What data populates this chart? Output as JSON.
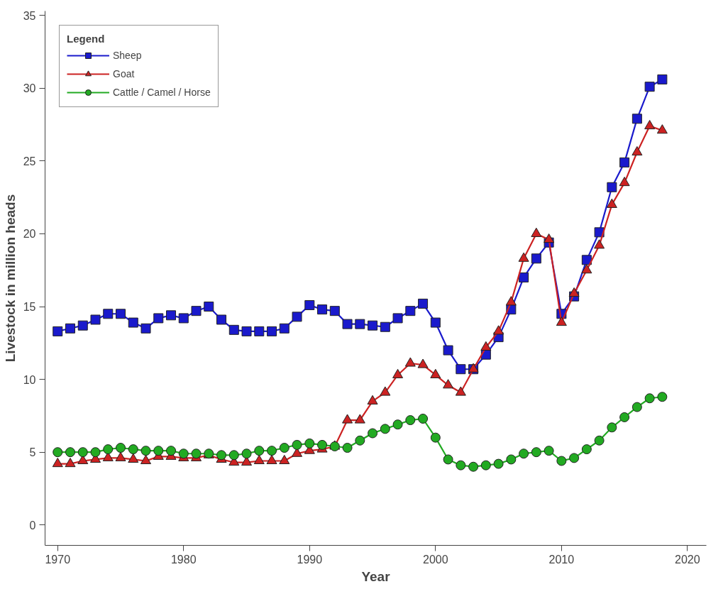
{
  "chart_data": {
    "type": "line",
    "xlabel": "Year",
    "ylabel": "Livestock in million heads",
    "legend_title": "Legend",
    "legend": "top left",
    "grid": false,
    "xlim": [
      1969,
      2021.5
    ],
    "ylim": [
      -1.4,
      35.3
    ],
    "xticks": [
      1970,
      1980,
      1990,
      2000,
      2010,
      2020
    ],
    "yticks": [
      0,
      5,
      10,
      15,
      20,
      25,
      30,
      35
    ],
    "x": [
      1970,
      1971,
      1972,
      1973,
      1974,
      1975,
      1976,
      1977,
      1978,
      1979,
      1980,
      1981,
      1982,
      1983,
      1984,
      1985,
      1986,
      1987,
      1988,
      1989,
      1990,
      1991,
      1992,
      1993,
      1994,
      1995,
      1996,
      1997,
      1998,
      1999,
      2000,
      2001,
      2002,
      2003,
      2004,
      2005,
      2006,
      2007,
      2008,
      2009,
      2010,
      2011,
      2012,
      2013,
      2014,
      2015,
      2016,
      2017,
      2018
    ],
    "series": [
      {
        "name": "Sheep",
        "color": "#1a1acc",
        "marker": "square",
        "values": [
          13.3,
          13.5,
          13.7,
          14.1,
          14.5,
          14.5,
          13.9,
          13.5,
          14.2,
          14.4,
          14.2,
          14.7,
          15.0,
          14.1,
          13.4,
          13.3,
          13.3,
          13.3,
          13.5,
          14.3,
          15.1,
          14.8,
          14.7,
          13.8,
          13.8,
          13.7,
          13.6,
          14.2,
          14.7,
          15.2,
          13.9,
          12.0,
          10.7,
          10.7,
          11.7,
          12.9,
          14.8,
          17.0,
          18.3,
          19.4,
          14.5,
          15.7,
          18.2,
          20.1,
          23.2,
          24.9,
          27.9,
          30.1,
          30.6
        ]
      },
      {
        "name": "Goat",
        "color": "#cc2222",
        "marker": "triangle",
        "values": [
          4.2,
          4.2,
          4.4,
          4.5,
          4.6,
          4.6,
          4.5,
          4.4,
          4.7,
          4.7,
          4.6,
          4.6,
          4.8,
          4.5,
          4.3,
          4.3,
          4.4,
          4.4,
          4.4,
          4.9,
          5.1,
          5.2,
          5.4,
          7.2,
          7.2,
          8.5,
          9.1,
          10.3,
          11.1,
          11.0,
          10.3,
          9.6,
          9.1,
          10.7,
          12.2,
          13.3,
          15.3,
          18.3,
          20.0,
          19.6,
          13.9,
          15.9,
          17.5,
          19.2,
          22.0,
          23.5,
          25.6,
          27.4,
          27.1
        ]
      },
      {
        "name": "Cattle / Camel / Horse",
        "color": "#22aa22",
        "marker": "circle",
        "values": [
          5.0,
          5.0,
          5.0,
          5.0,
          5.2,
          5.3,
          5.2,
          5.1,
          5.1,
          5.1,
          4.9,
          4.9,
          4.9,
          4.8,
          4.8,
          4.9,
          5.1,
          5.1,
          5.3,
          5.5,
          5.6,
          5.5,
          5.4,
          5.3,
          5.8,
          6.3,
          6.6,
          6.9,
          7.2,
          7.3,
          6.0,
          4.5,
          4.1,
          4.0,
          4.1,
          4.2,
          4.5,
          4.9,
          5.0,
          5.1,
          4.4,
          4.6,
          5.2,
          5.8,
          6.7,
          7.4,
          8.1,
          8.7,
          8.8
        ]
      }
    ]
  }
}
